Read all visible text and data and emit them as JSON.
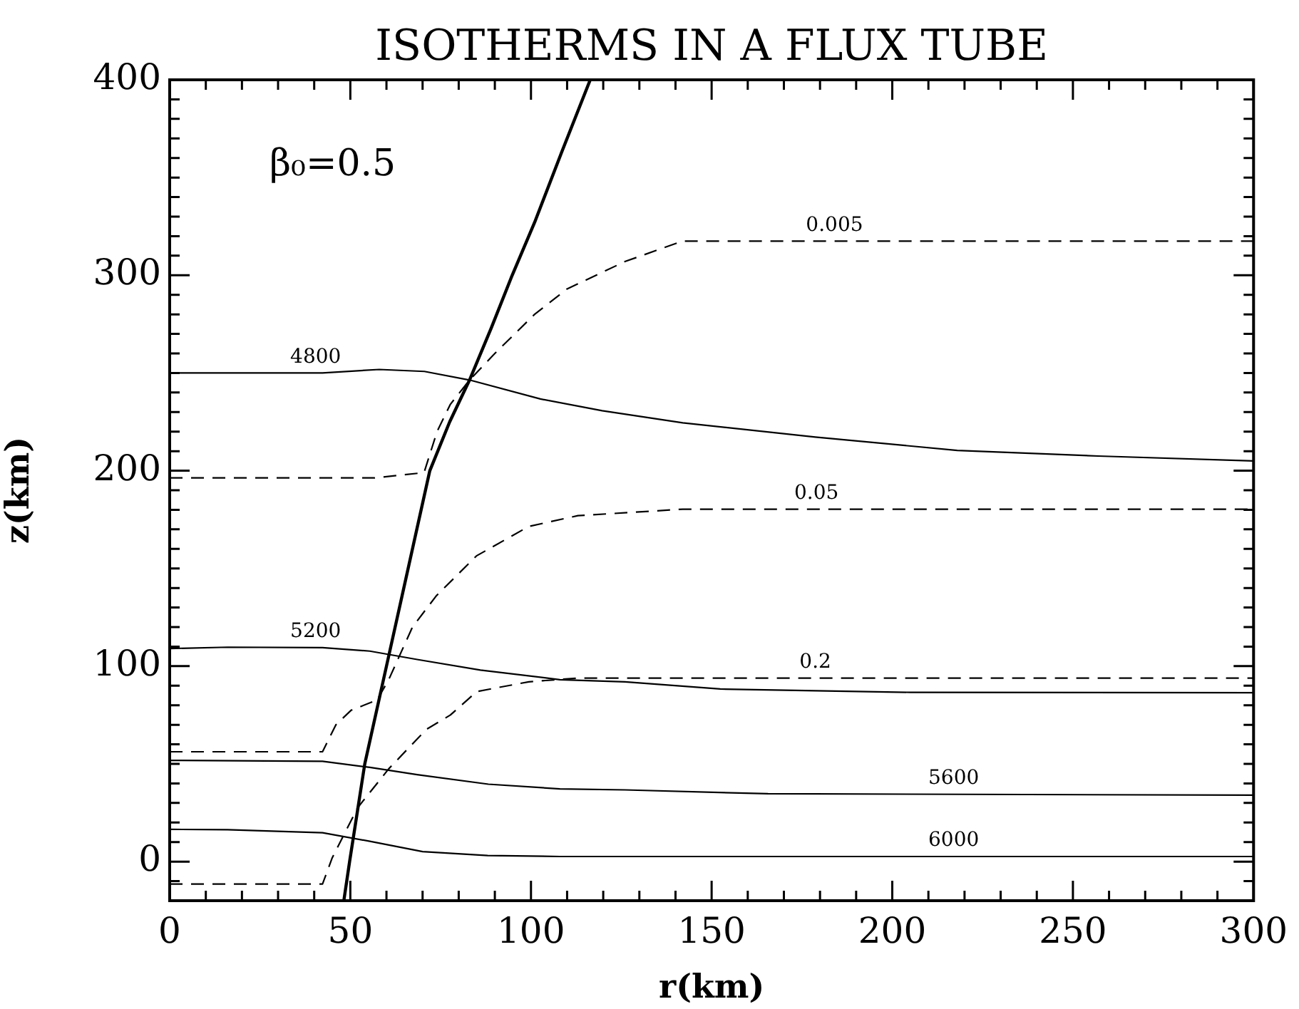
{
  "chart_data": {
    "type": "line",
    "title": "ISOTHERMS IN A FLUX TUBE",
    "xlabel": "r(km)",
    "ylabel": "z(km)",
    "xlim": [
      0,
      300
    ],
    "ylim": [
      -20,
      400
    ],
    "xticks": [
      0,
      {
        "value": 10,
        "label": null
      },
      {
        "value": 20,
        "label": null
      },
      {
        "value": 30,
        "label": null
      },
      {
        "value": 40,
        "label": null
      },
      50,
      {
        "value": 60,
        "label": null
      },
      {
        "value": 70,
        "label": null
      },
      {
        "value": 80,
        "label": null
      },
      {
        "value": 90,
        "label": null
      },
      100,
      {
        "value": 110,
        "label": null
      },
      {
        "value": 120,
        "label": null
      },
      {
        "value": 130,
        "label": null
      },
      {
        "value": 140,
        "label": null
      },
      150,
      {
        "value": 160,
        "label": null
      },
      {
        "value": 170,
        "label": null
      },
      {
        "value": 180,
        "label": null
      },
      {
        "value": 190,
        "label": null
      },
      200,
      {
        "value": 210,
        "label": null
      },
      {
        "value": 220,
        "label": null
      },
      {
        "value": 230,
        "label": null
      },
      {
        "value": 240,
        "label": null
      },
      250,
      {
        "value": 260,
        "label": null
      },
      {
        "value": 270,
        "label": null
      },
      {
        "value": 280,
        "label": null
      },
      {
        "value": 290,
        "label": null
      },
      300
    ],
    "yticks": [
      {
        "value": -20,
        "label": null
      },
      {
        "value": -10,
        "label": null
      },
      0,
      {
        "value": 10,
        "label": null
      },
      {
        "value": 20,
        "label": null
      },
      {
        "value": 30,
        "label": null
      },
      {
        "value": 40,
        "label": null
      },
      {
        "value": 50,
        "label": null
      },
      {
        "value": 60,
        "label": null
      },
      {
        "value": 70,
        "label": null
      },
      {
        "value": 80,
        "label": null
      },
      {
        "value": 90,
        "label": null
      },
      100,
      {
        "value": 110,
        "label": null
      },
      {
        "value": 120,
        "label": null
      },
      {
        "value": 130,
        "label": null
      },
      {
        "value": 140,
        "label": null
      },
      {
        "value": 150,
        "label": null
      },
      {
        "value": 160,
        "label": null
      },
      {
        "value": 170,
        "label": null
      },
      {
        "value": 180,
        "label": null
      },
      {
        "value": 190,
        "label": null
      },
      200,
      {
        "value": 210,
        "label": null
      },
      {
        "value": 220,
        "label": null
      },
      {
        "value": 230,
        "label": null
      },
      {
        "value": 240,
        "label": null
      },
      {
        "value": 250,
        "label": null
      },
      {
        "value": 260,
        "label": null
      },
      {
        "value": 270,
        "label": null
      },
      {
        "value": 280,
        "label": null
      },
      {
        "value": 290,
        "label": null
      },
      300,
      {
        "value": 310,
        "label": null
      },
      {
        "value": 320,
        "label": null
      },
      {
        "value": 330,
        "label": null
      },
      {
        "value": 340,
        "label": null
      },
      {
        "value": 350,
        "label": null
      },
      {
        "value": 360,
        "label": null
      },
      {
        "value": 370,
        "label": null
      },
      {
        "value": 380,
        "label": null
      },
      {
        "value": 390,
        "label": null
      },
      400
    ],
    "series": [
      {
        "color": "#000000",
        "line_style": "solid",
        "x": [
          48.2,
          49.8,
          54,
          60,
          66,
          72,
          77.5,
          83,
          89,
          94.8,
          101,
          108.5,
          116.4
        ],
        "values": [
          -20,
          0,
          50,
          100,
          150,
          200,
          225,
          246.4,
          273,
          300,
          327,
          363,
          400
        ]
      },
      {
        "name": "0.005",
        "color": "#000000",
        "line_style": "dashed",
        "x": [
          0,
          56.6,
          70.4,
          74,
          77.7,
          83,
          90,
          101,
          110,
          126,
          142,
          300
        ],
        "values": [
          196.3,
          196.3,
          199,
          220,
          234,
          246.4,
          260,
          280,
          293,
          307,
          317.5,
          317.5
        ]
      },
      {
        "name": "0.05",
        "color": "#000000",
        "line_style": "dashed",
        "x": [
          0,
          42.3,
          46,
          50.2,
          57.4,
          60.6,
          67.2,
          73.8,
          84.9,
          99.4,
          113,
          142,
          300
        ],
        "values": [
          56.2,
          56.2,
          70,
          77.4,
          82.7,
          93,
          120,
          136,
          156.4,
          171.5,
          177,
          180.3,
          180.3
        ]
      },
      {
        "name": "0.2",
        "color": "#000000",
        "line_style": "dashed",
        "x": [
          0,
          42.3,
          45,
          52,
          60.6,
          71,
          77.7,
          85,
          99.4,
          113,
          300
        ],
        "values": [
          -11.5,
          -11.5,
          2,
          27.5,
          47.4,
          67.6,
          75,
          87,
          92,
          93.9,
          93.9
        ]
      },
      {
        "name": "4800",
        "color": "#000000",
        "line_style": "solid",
        "x": [
          0,
          42.3,
          58,
          70.5,
          83,
          102.6,
          119.7,
          142,
          178.7,
          218,
          257,
          300
        ],
        "values": [
          250,
          250,
          251.8,
          250.8,
          246.4,
          236.7,
          230.7,
          224.5,
          217.2,
          210.4,
          207.5,
          205
        ]
      },
      {
        "name": "5200",
        "color": "#000000",
        "line_style": "solid",
        "x": [
          0,
          16.1,
          42.3,
          55.4,
          68.5,
          86,
          108,
          126,
          152.4,
          205,
          300
        ],
        "values": [
          109,
          109.7,
          109.5,
          107.7,
          103.4,
          98,
          93.1,
          92,
          88.3,
          86.6,
          86.4
        ]
      },
      {
        "name": "5600",
        "color": "#000000",
        "line_style": "solid",
        "x": [
          0,
          42.3,
          55.4,
          68.5,
          88.2,
          108,
          126,
          165.6,
          300
        ],
        "values": [
          51.8,
          51.3,
          48.2,
          44.5,
          39.6,
          37.2,
          36.7,
          34.7,
          34
        ]
      },
      {
        "name": "6000",
        "color": "#000000",
        "line_style": "solid",
        "x": [
          0,
          16,
          42.3,
          55.4,
          70,
          88,
          108,
          300
        ],
        "values": [
          16.5,
          16.3,
          14.8,
          10.4,
          5.1,
          3.1,
          2.6,
          2.6
        ]
      }
    ],
    "annotations": [
      "β₀=0.5"
    ]
  }
}
